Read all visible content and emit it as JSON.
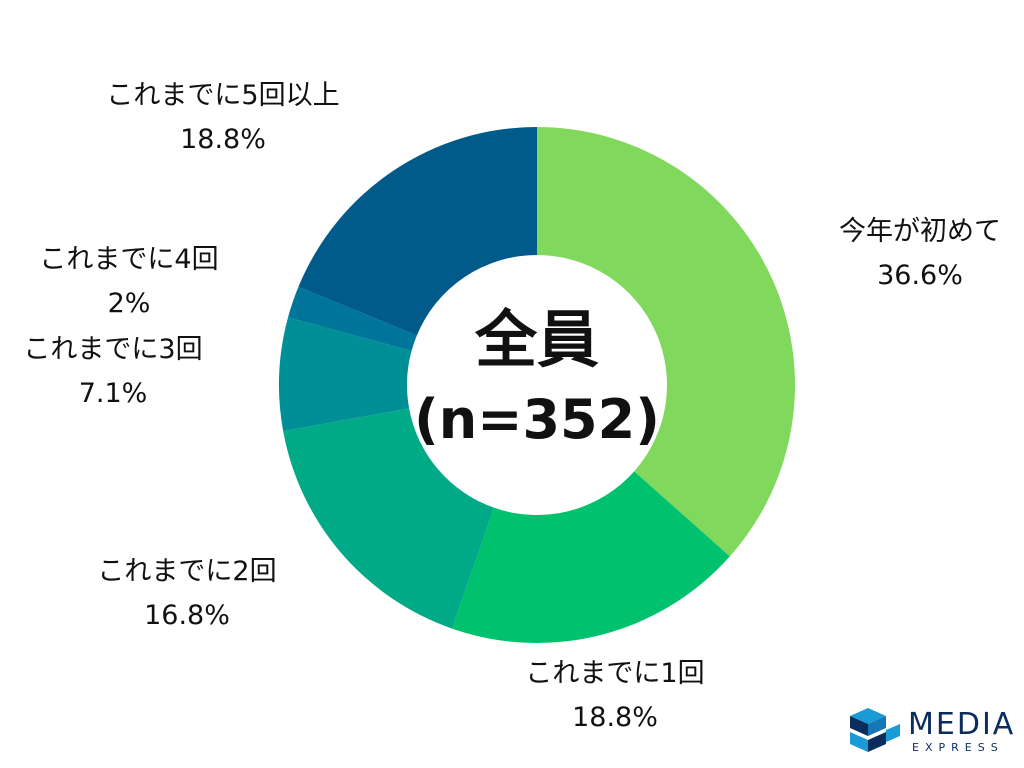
{
  "chart_data": {
    "type": "pie",
    "donut": true,
    "center_label": [
      "全員",
      "(n=352)"
    ],
    "slices": [
      {
        "label": "今年が初めて",
        "value_label": "36.6%",
        "value": 36.6,
        "color": "#80d95c"
      },
      {
        "label": "これまでに1回",
        "value_label": "18.8%",
        "value": 18.8,
        "color": "#00c26e"
      },
      {
        "label": "これまでに2回",
        "value_label": "16.8%",
        "value": 16.8,
        "color": "#00aa87"
      },
      {
        "label": "これまでに3回",
        "value_label": "7.1%",
        "value": 7.1,
        "color": "#008f96"
      },
      {
        "label": "これまでに4回",
        "value_label": "2%",
        "value": 2.0,
        "color": "#00759a"
      },
      {
        "label": "これまでに5回以上",
        "value_label": "18.8%",
        "value": 18.8,
        "color": "#005a8a"
      }
    ]
  },
  "logo": {
    "word": "MEDIA",
    "sub": "EXPRESS",
    "colors": [
      "#0a2d5e",
      "#1a9ad6"
    ]
  }
}
